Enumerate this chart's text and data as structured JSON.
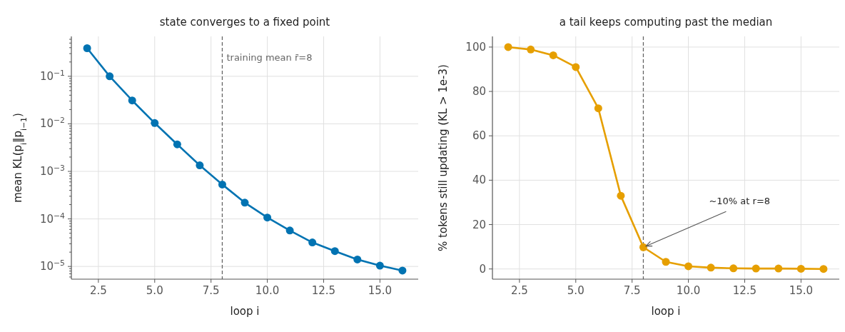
{
  "chart_data": [
    {
      "type": "line",
      "title": "state converges to a fixed point",
      "xlabel": "loop i",
      "ylabel": "mean KL(p$_{i}$‖p$_{i−1}$)",
      "x": [
        2,
        3,
        4,
        5,
        6,
        7,
        8,
        9,
        10,
        11,
        12,
        13,
        14,
        15,
        16
      ],
      "series": [
        {
          "color": "#0173b2",
          "values": [
            0.39,
            0.1,
            0.031,
            0.0104,
            0.0037,
            0.00134,
            0.00053,
            0.00022,
            0.000107,
            5.7e-05,
            3.2e-05,
            2.1e-05,
            1.4e-05,
            1.04e-05,
            8.2e-06
          ]
        }
      ],
      "xlim": [
        1.3,
        16.7
      ],
      "ylim": [
        5.4e-06,
        0.69
      ],
      "xticks": [
        {
          "value": 2.5,
          "label": "2.5"
        },
        {
          "value": 5,
          "label": "5.0"
        },
        {
          "value": 7.5,
          "label": "7.5"
        },
        {
          "value": 10,
          "label": "10.0"
        },
        {
          "value": 12.5,
          "label": "12.5"
        },
        {
          "value": 15,
          "label": "15.0"
        }
      ],
      "yticks": [
        {
          "value": 1e-05,
          "label": "10$^{−5}$"
        },
        {
          "value": 0.0001,
          "label": "10$^{−4}$"
        },
        {
          "value": 0.001,
          "label": "10$^{−3}$"
        },
        {
          "value": 0.01,
          "label": "10$^{−2}$"
        },
        {
          "value": 0.1,
          "label": "10$^{−1}$"
        }
      ],
      "log": true,
      "grid": true,
      "marker": "circle",
      "line_style": "solid",
      "ref_lines": [
        {
          "axis": "x",
          "value": 8,
          "label": "training mean r̄=8",
          "color": "#666666",
          "line_style": "dashed"
        }
      ]
    },
    {
      "type": "line",
      "title": "a tail keeps computing past the median",
      "xlabel": "loop i",
      "ylabel": "% tokens still updating (KL > 1e-3)",
      "x": [
        2,
        3,
        4,
        5,
        6,
        7,
        8,
        9,
        10,
        11,
        12,
        13,
        14,
        15,
        16
      ],
      "series": [
        {
          "color": "#e69f00",
          "values": [
            100,
            98.9,
            96.3,
            91.0,
            72.4,
            33.0,
            9.8,
            3.2,
            1.2,
            0.6,
            0.3,
            0.2,
            0.2,
            0.1,
            0
          ]
        }
      ],
      "xlim": [
        1.3,
        16.7
      ],
      "ylim": [
        -4.6,
        104.8
      ],
      "xticks": [
        {
          "value": 2.5,
          "label": "2.5"
        },
        {
          "value": 5,
          "label": "5.0"
        },
        {
          "value": 7.5,
          "label": "7.5"
        },
        {
          "value": 10,
          "label": "10.0"
        },
        {
          "value": 12.5,
          "label": "12.5"
        },
        {
          "value": 15,
          "label": "15.0"
        }
      ],
      "yticks": [
        0,
        20,
        40,
        60,
        80,
        100
      ],
      "grid": true,
      "marker": "circle",
      "line_style": "solid",
      "ref_lines": [
        {
          "axis": "x",
          "value": 8,
          "color": "#666666",
          "line_style": "dashed"
        }
      ],
      "annotations": [
        {
          "text": "~10% at r=8",
          "x": 8,
          "y": 9.8
        }
      ]
    }
  ]
}
